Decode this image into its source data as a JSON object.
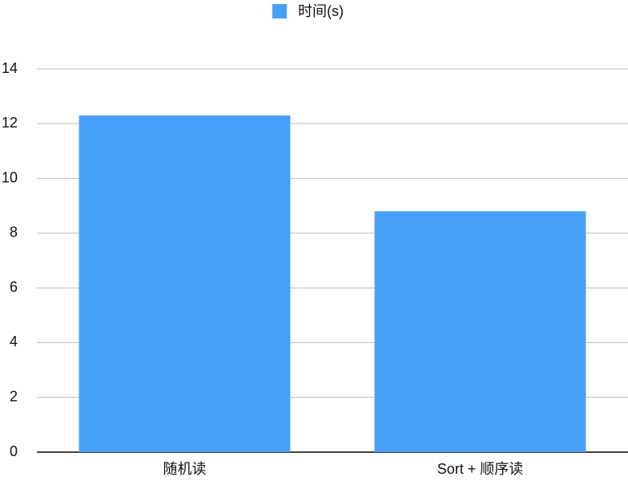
{
  "chart_data": {
    "type": "bar",
    "categories": [
      "随机读",
      "Sort + 顺序读"
    ],
    "series": [
      {
        "name": "时间(s)",
        "color": "#48a0f8",
        "values": [
          12.3,
          8.8
        ]
      }
    ],
    "ylim": [
      0,
      14
    ],
    "yticks": [
      0,
      2,
      4,
      6,
      8,
      10,
      12,
      14
    ],
    "grid": true,
    "legend": "top"
  }
}
